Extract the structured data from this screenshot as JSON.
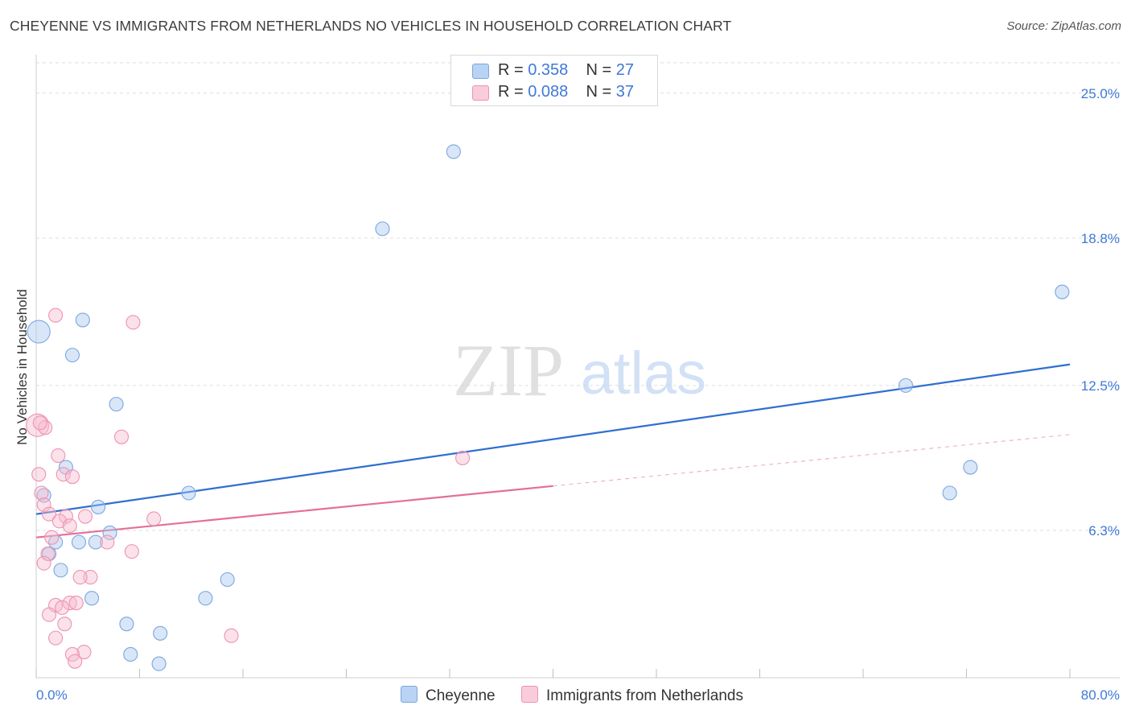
{
  "chart_data": {
    "type": "scatter",
    "title": "CHEYENNE VS IMMIGRANTS FROM NETHERLANDS NO VEHICLES IN HOUSEHOLD CORRELATION CHART",
    "source": "Source: ZipAtlas.com",
    "xlabel": "",
    "ylabel": "No Vehicles in Household",
    "xlim": [
      0,
      80
    ],
    "ylim": [
      0,
      26.3
    ],
    "x_tick_labels": [
      "0.0%",
      "80.0%"
    ],
    "y_ticks": [
      6.3,
      12.5,
      18.8,
      25.0
    ],
    "y_tick_labels": [
      "6.3%",
      "12.5%",
      "18.8%",
      "25.0%"
    ],
    "watermark": {
      "zip": "ZIP",
      "atlas": "atlas"
    },
    "legend": [
      {
        "r_label": "R =",
        "r_value": "0.358",
        "n_label": "N =",
        "n_value": "27"
      },
      {
        "r_label": "R =",
        "r_value": "0.088",
        "n_label": "N =",
        "n_value": "37"
      }
    ],
    "series": [
      {
        "name": "Cheyenne",
        "color": "#a9c8f0",
        "stroke": "#7aa7e0",
        "trend_color": "#2f6fd0",
        "trend": {
          "x0": 0,
          "y0": 7.0,
          "x1": 80,
          "y1": 13.4,
          "dashed_from": null
        },
        "points": [
          {
            "x": 0.2,
            "y": 14.8,
            "big": true
          },
          {
            "x": 3.6,
            "y": 15.3
          },
          {
            "x": 2.8,
            "y": 13.8
          },
          {
            "x": 6.2,
            "y": 11.7
          },
          {
            "x": 2.3,
            "y": 9.0
          },
          {
            "x": 0.6,
            "y": 7.8
          },
          {
            "x": 4.8,
            "y": 7.3
          },
          {
            "x": 11.8,
            "y": 7.9
          },
          {
            "x": 5.7,
            "y": 6.2
          },
          {
            "x": 1.5,
            "y": 5.8
          },
          {
            "x": 3.3,
            "y": 5.8
          },
          {
            "x": 4.6,
            "y": 5.8
          },
          {
            "x": 1.0,
            "y": 5.3
          },
          {
            "x": 1.9,
            "y": 4.6
          },
          {
            "x": 14.8,
            "y": 4.2
          },
          {
            "x": 4.3,
            "y": 3.4
          },
          {
            "x": 13.1,
            "y": 3.4
          },
          {
            "x": 7.0,
            "y": 2.3
          },
          {
            "x": 9.6,
            "y": 1.9
          },
          {
            "x": 7.3,
            "y": 1.0
          },
          {
            "x": 9.5,
            "y": 0.6
          },
          {
            "x": 26.8,
            "y": 19.2
          },
          {
            "x": 32.3,
            "y": 22.5
          },
          {
            "x": 79.4,
            "y": 16.5
          },
          {
            "x": 67.3,
            "y": 12.5
          },
          {
            "x": 72.3,
            "y": 9.0
          },
          {
            "x": 70.7,
            "y": 7.9
          }
        ]
      },
      {
        "name": "Immigrants from Netherlands",
        "color": "#f7bdd0",
        "stroke": "#ee93b1",
        "trend_color": "#e46f97",
        "trend": {
          "x0": 0,
          "y0": 6.0,
          "x1": 80,
          "y1": 10.4,
          "dashed_from": 40
        },
        "points": [
          {
            "x": 0.1,
            "y": 10.8,
            "big": true
          },
          {
            "x": 1.5,
            "y": 15.5
          },
          {
            "x": 7.5,
            "y": 15.2
          },
          {
            "x": 0.7,
            "y": 10.7
          },
          {
            "x": 6.6,
            "y": 10.3
          },
          {
            "x": 1.7,
            "y": 9.5
          },
          {
            "x": 0.2,
            "y": 8.7
          },
          {
            "x": 2.1,
            "y": 8.7
          },
          {
            "x": 2.8,
            "y": 8.6
          },
          {
            "x": 0.4,
            "y": 7.9
          },
          {
            "x": 0.6,
            "y": 7.4
          },
          {
            "x": 1.0,
            "y": 7.0
          },
          {
            "x": 2.3,
            "y": 6.9
          },
          {
            "x": 3.8,
            "y": 6.9
          },
          {
            "x": 9.1,
            "y": 6.8
          },
          {
            "x": 1.8,
            "y": 6.7
          },
          {
            "x": 2.6,
            "y": 6.5
          },
          {
            "x": 1.2,
            "y": 6.0
          },
          {
            "x": 5.5,
            "y": 5.8
          },
          {
            "x": 7.4,
            "y": 5.4
          },
          {
            "x": 0.9,
            "y": 5.3
          },
          {
            "x": 0.6,
            "y": 4.9
          },
          {
            "x": 4.2,
            "y": 4.3
          },
          {
            "x": 3.4,
            "y": 4.3
          },
          {
            "x": 2.6,
            "y": 3.2
          },
          {
            "x": 3.1,
            "y": 3.2
          },
          {
            "x": 1.5,
            "y": 3.1
          },
          {
            "x": 2.0,
            "y": 3.0
          },
          {
            "x": 1.0,
            "y": 2.7
          },
          {
            "x": 2.2,
            "y": 2.3
          },
          {
            "x": 1.5,
            "y": 1.7
          },
          {
            "x": 15.1,
            "y": 1.8
          },
          {
            "x": 3.7,
            "y": 1.1
          },
          {
            "x": 2.8,
            "y": 1.0
          },
          {
            "x": 3.0,
            "y": 0.7
          },
          {
            "x": 33.0,
            "y": 9.4
          },
          {
            "x": 0.3,
            "y": 10.9
          }
        ]
      }
    ]
  }
}
